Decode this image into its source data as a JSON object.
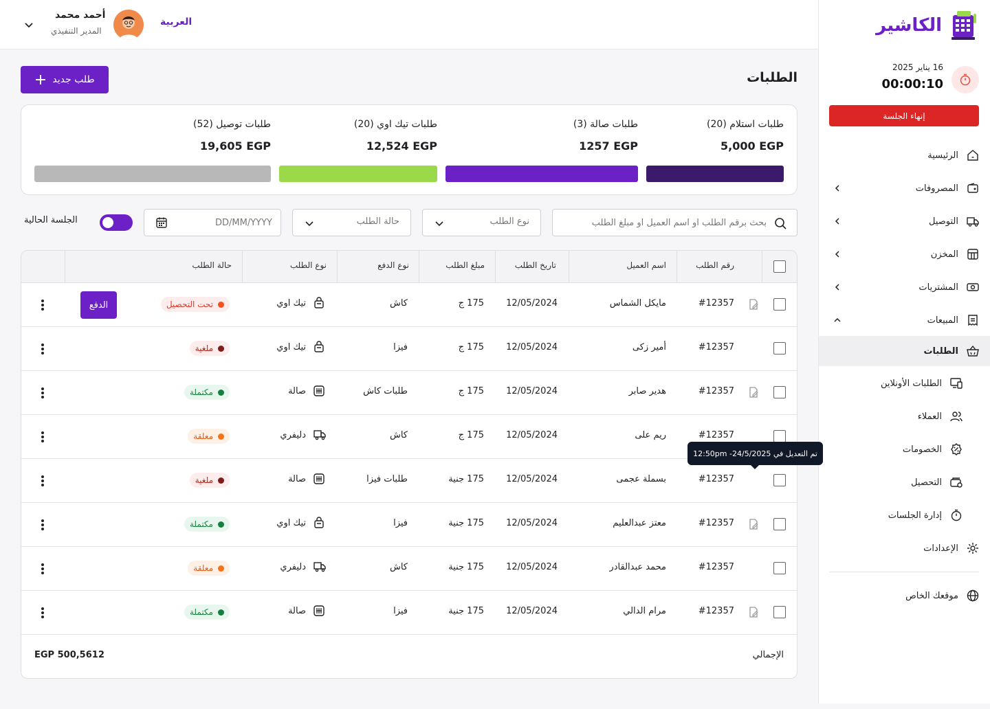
{
  "brand": {
    "name": "الكاشير",
    "color": "#6b21c5"
  },
  "session": {
    "date": "16 يناير 2025",
    "time": "00:00:10",
    "end_label": "إنهاء الجلسة"
  },
  "sidebar": {
    "items": [
      {
        "label": "الرئيسية",
        "icon": "home-icon"
      },
      {
        "label": "المصروفات",
        "icon": "wallet-icon"
      },
      {
        "label": "التوصيل",
        "icon": "truck-icon"
      },
      {
        "label": "المخزن",
        "icon": "store-icon"
      },
      {
        "label": "المشتريات",
        "icon": "cash-icon"
      },
      {
        "label": "المبيعات",
        "icon": "receipt-icon"
      },
      {
        "label": "الطلبات",
        "icon": "basket-icon"
      },
      {
        "label": "الطلبات الأونلاين",
        "icon": "devices-icon"
      },
      {
        "label": "العملاء",
        "icon": "users-icon"
      },
      {
        "label": "الخصومات",
        "icon": "discount-icon"
      },
      {
        "label": "التحصيل",
        "icon": "collect-icon"
      },
      {
        "label": "إدارة الجلسات",
        "icon": "stopwatch-icon"
      },
      {
        "label": "الإعدادات",
        "icon": "gear-icon"
      },
      {
        "label": "موقعك الخاص",
        "icon": "globe-icon"
      }
    ]
  },
  "topbar": {
    "language": "العربية",
    "user_name": "أحمد محمد",
    "user_role": "المدير التنفيذي"
  },
  "page": {
    "title": "الطلبات",
    "new_order_label": "طلب جديد"
  },
  "stats": [
    {
      "title": "طلبات استلام  (20)",
      "value": "5,000 EGP",
      "color": "#3b1a6b"
    },
    {
      "title": "طلبات صالة  (3)",
      "value": "1257 EGP",
      "color": "#6b21c5"
    },
    {
      "title": "طلبات تيك اوي  (20)",
      "value": "12,524 EGP",
      "color": "#9ad94a"
    },
    {
      "title": "طلبات توصيل  (52)",
      "value": "19,605 EGP",
      "color": "#b8b8b8"
    }
  ],
  "filters": {
    "search_placeholder": "بحث برقم الطلب او اسم العميل او مبلغ الطلب",
    "order_type": "نوع الطلب",
    "order_status": "حالة الطلب",
    "date_placeholder": "DD/MM/YYYY",
    "current_session": "الجلسة الحالية"
  },
  "table": {
    "headers": {
      "order_no": "رقم الطلب",
      "customer": "اسم العميل",
      "date": "تاريخ الطلب",
      "amount": "مبلغ الطلب",
      "payment": "نوع الدفع",
      "type": "نوع الطلب",
      "status": "حالة الطلب"
    },
    "rows": [
      {
        "order_no": "#12357",
        "customer": "مايكل الشماس",
        "date": "12/05/2024",
        "amount": "175 ج",
        "payment": "كاش",
        "type": "تيك اوي",
        "type_icon": "bag-icon",
        "status": "تحت التحصيل",
        "status_kind": "pending",
        "edited": true,
        "pay": "الدفع"
      },
      {
        "order_no": "#12357",
        "customer": "أمير زكى",
        "date": "12/05/2024",
        "amount": "175 ج",
        "payment": "فيزا",
        "type": "تيك اوي",
        "type_icon": "bag-icon",
        "status": "ملغية",
        "status_kind": "cancelled",
        "edited": false
      },
      {
        "order_no": "#12357",
        "customer": "هدير صابر",
        "date": "12/05/2024",
        "amount": "175 ج",
        "payment": "طلبات كاش",
        "type": "صالة",
        "type_icon": "dinein-icon",
        "status": "مكتملة",
        "status_kind": "done",
        "edited": true
      },
      {
        "order_no": "#12357",
        "customer": "ريم على",
        "date": "12/05/2024",
        "amount": "175 ج",
        "payment": "كاش",
        "type": "دليفري",
        "type_icon": "truck-icon",
        "status": "معلقة",
        "status_kind": "hold",
        "edited": false
      },
      {
        "order_no": "#12357",
        "customer": "بسملة عجمى",
        "date": "12/05/2024",
        "amount": "175 جنية",
        "payment": "طلبات فيزا",
        "type": "صالة",
        "type_icon": "dinein-icon",
        "status": "ملغية",
        "status_kind": "cancelled",
        "edited": false
      },
      {
        "order_no": "#12357",
        "customer": "معتز عبدالعليم",
        "date": "12/05/2024",
        "amount": "175 جنية",
        "payment": "فيزا",
        "type": "تيك اوي",
        "type_icon": "bag-icon",
        "status": "مكتملة",
        "status_kind": "done",
        "edited": true
      },
      {
        "order_no": "#12357",
        "customer": "محمد عبدالقادر",
        "date": "12/05/2024",
        "amount": "175 جنية",
        "payment": "كاش",
        "type": "دليفري",
        "type_icon": "truck-icon",
        "status": "معلقة",
        "status_kind": "hold",
        "edited": false
      },
      {
        "order_no": "#12357",
        "customer": "مرام الدالي",
        "date": "12/05/2024",
        "amount": "175 جنية",
        "payment": "فيزا",
        "type": "صالة",
        "type_icon": "dinein-icon",
        "status": "مكتملة",
        "status_kind": "done",
        "edited": true
      }
    ],
    "total_label": "الإجمالي",
    "total_value": "EGP 500,5612"
  },
  "tooltip": "تم التعديل في 24/5/2025- 12:50pm",
  "status_colors": {
    "pending": {
      "bg": "#fdecec",
      "text": "#d33b2b",
      "dot": "#f4511e"
    },
    "cancelled": {
      "bg": "#fdecec",
      "text": "#b42318",
      "dot": "#7f1d1d"
    },
    "done": {
      "bg": "#e8f7ee",
      "text": "#16803c",
      "dot": "#15803d"
    },
    "hold": {
      "bg": "#fff0e6",
      "text": "#e8590c",
      "dot": "#f97316"
    }
  }
}
